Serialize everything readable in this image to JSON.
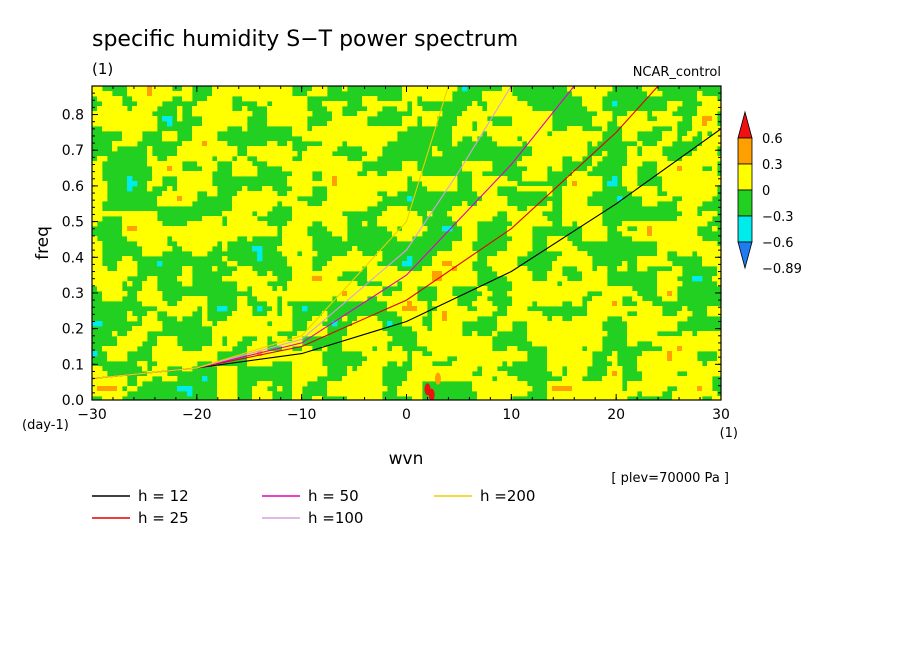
{
  "chart_data": {
    "type": "heatmap",
    "title": "specific humidity S−T power spectrum",
    "units_label": "(1)",
    "case_label": "NCAR_control",
    "xlabel": "wvn",
    "ylabel": "freq",
    "x_units": "(1)",
    "y_units": "(day-1)",
    "xlim": [
      -30,
      30
    ],
    "ylim": [
      0,
      0.88
    ],
    "x_ticks": [
      -30,
      -20,
      -10,
      0,
      10,
      20,
      30
    ],
    "x_tick_labels": [
      "−30",
      "−20",
      "−10",
      "0",
      "10",
      "20",
      "30"
    ],
    "y_ticks": [
      0,
      0.1,
      0.2,
      0.3,
      0.4,
      0.5,
      0.6,
      0.7,
      0.8
    ],
    "y_tick_labels": [
      "0.0",
      "0.1",
      "0.2",
      "0.3",
      "0.4",
      "0.5",
      "0.6",
      "0.7",
      "0.8"
    ],
    "colorbar": {
      "levels": [
        -0.89,
        -0.6,
        -0.3,
        0,
        0.3,
        0.6
      ],
      "level_labels": [
        "−0.89",
        "−0.6",
        "−0.3",
        "0",
        "0.3",
        "0.6"
      ],
      "colors": [
        "#1e7cf0",
        "#00ecec",
        "#22d022",
        "#ffff00",
        "#ffa000",
        "#f01010"
      ]
    },
    "annotation": "[ plev=70000 Pa ]",
    "series": [
      {
        "name": "h = 12",
        "color": "#000000",
        "h": 12,
        "x": [
          -30,
          -20,
          -10,
          0,
          10,
          20,
          30
        ],
        "y": [
          0.06,
          0.09,
          0.13,
          0.22,
          0.36,
          0.55,
          0.76
        ]
      },
      {
        "name": "h = 25",
        "color": "#e00000",
        "h": 25,
        "x": [
          -30,
          -20,
          -10,
          0,
          10,
          20,
          24
        ],
        "y": [
          0.06,
          0.09,
          0.15,
          0.28,
          0.48,
          0.75,
          0.88
        ]
      },
      {
        "name": "h = 50",
        "color": "#e000c0",
        "h": 50,
        "x": [
          -30,
          -20,
          -10,
          0,
          10,
          16
        ],
        "y": [
          0.06,
          0.09,
          0.16,
          0.35,
          0.66,
          0.88
        ]
      },
      {
        "name": "h =100",
        "color": "#d8a0e0",
        "h": 100,
        "x": [
          -30,
          -20,
          -10,
          0,
          5,
          10
        ],
        "y": [
          0.06,
          0.09,
          0.17,
          0.42,
          0.64,
          0.88
        ]
      },
      {
        "name": "h =200",
        "color": "#e8d000",
        "h": 200,
        "x": [
          -30,
          -20,
          -10,
          0,
          4
        ],
        "y": [
          0.06,
          0.09,
          0.18,
          0.5,
          0.88
        ]
      }
    ]
  }
}
